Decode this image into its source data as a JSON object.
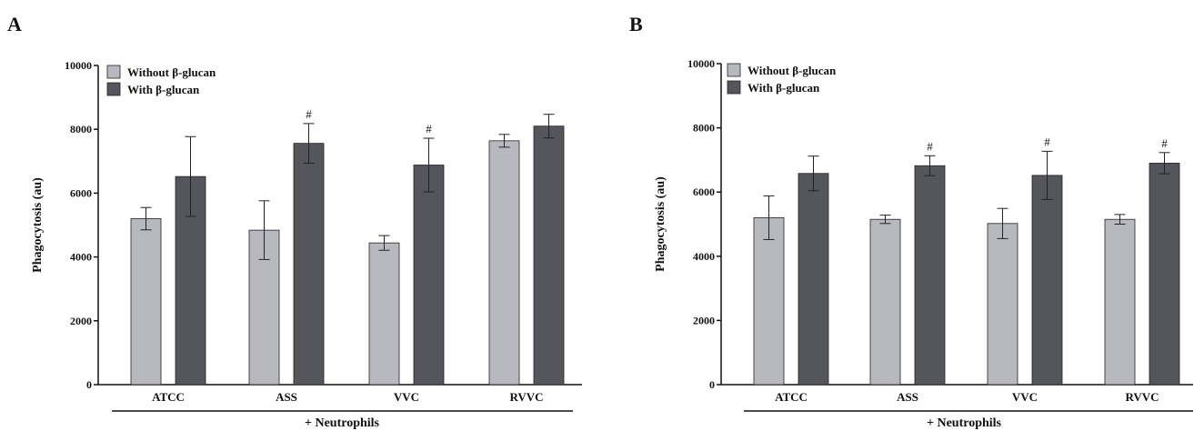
{
  "colors": {
    "without": "#b8b9be",
    "with": "#55565c",
    "axis": "#111111"
  },
  "chart_data": [
    {
      "panel": "A",
      "type": "bar",
      "ylabel": "Phagocytosis (au)",
      "ylim": [
        0,
        10000
      ],
      "yticks": [
        0,
        2000,
        4000,
        6000,
        8000,
        10000
      ],
      "categories": [
        "ATCC",
        "ASS",
        "VVC",
        "RVVC"
      ],
      "group_label": "+ Neutrophils",
      "legend_position": "top-left",
      "series": [
        {
          "name": "Without β-glucan",
          "values": [
            5200,
            4840,
            4440,
            7640
          ],
          "errors": [
            350,
            920,
            230,
            200
          ],
          "marks": [
            "",
            "",
            "",
            ""
          ]
        },
        {
          "name": "With β-glucan",
          "values": [
            6520,
            7560,
            6880,
            8100
          ],
          "errors": [
            1250,
            620,
            840,
            370
          ],
          "marks": [
            "",
            "#",
            "#",
            ""
          ]
        }
      ]
    },
    {
      "panel": "B",
      "type": "bar",
      "ylabel": "Phagocytosis (au)",
      "ylim": [
        0,
        10000
      ],
      "yticks": [
        0,
        2000,
        4000,
        6000,
        8000,
        10000
      ],
      "categories": [
        "ATCC",
        "ASS",
        "VVC",
        "RVVC"
      ],
      "group_label": "+ Neutrophils",
      "legend_position": "top-left",
      "series": [
        {
          "name": "Without β-glucan",
          "values": [
            5200,
            5150,
            5020,
            5150
          ],
          "errors": [
            680,
            130,
            470,
            150
          ],
          "marks": [
            "",
            "",
            "",
            ""
          ]
        },
        {
          "name": "With β-glucan",
          "values": [
            6580,
            6820,
            6520,
            6900
          ],
          "errors": [
            540,
            310,
            750,
            330
          ],
          "marks": [
            "",
            "#",
            "#",
            "#"
          ]
        }
      ]
    }
  ]
}
